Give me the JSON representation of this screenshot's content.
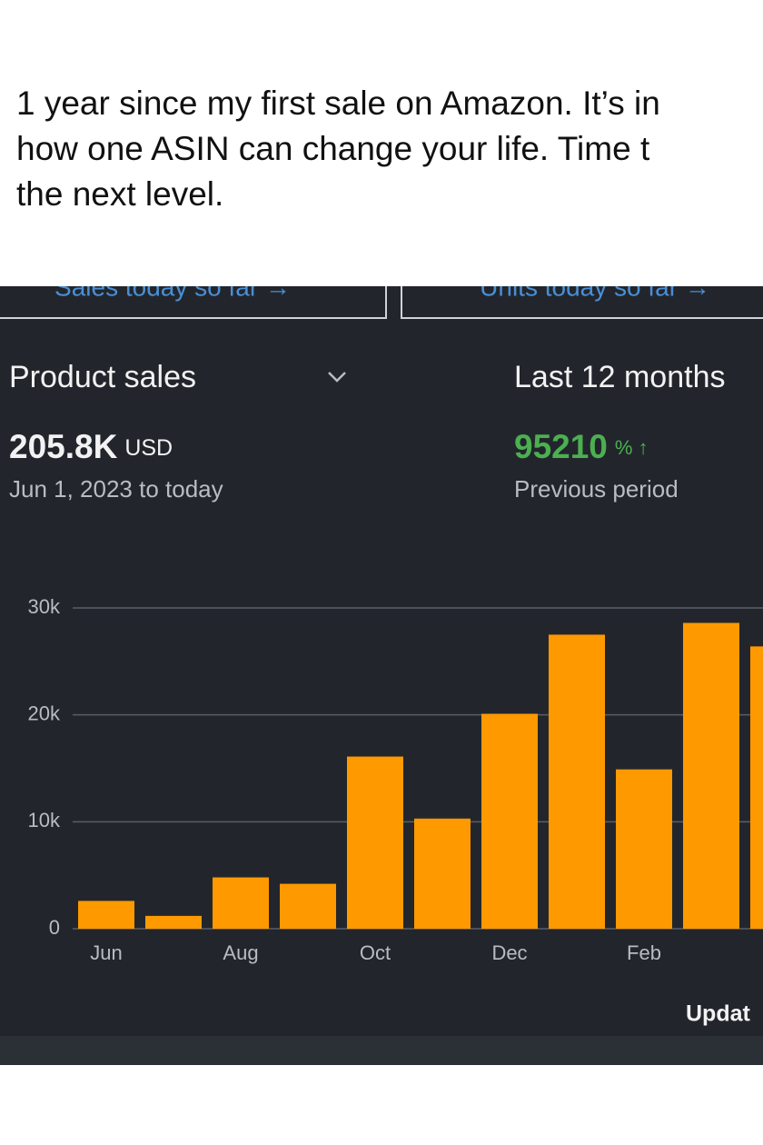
{
  "post": {
    "lines": [
      "1 year since my first sale on Amazon. It’s in",
      "how one ASIN can change your life. Time t",
      "the next level."
    ]
  },
  "tabs": [
    "Sales today so far →",
    "Units today so far →"
  ],
  "header": {
    "metric": "Product sales",
    "period": "Last 12 months",
    "total": "205.8K",
    "currency": "USD",
    "range": "Jun 1, 2023 to today",
    "change": "95210",
    "change_unit": "% ↑",
    "change_caption": "Previous period"
  },
  "footer": {
    "updated": "Updat"
  },
  "chart_data": {
    "type": "bar",
    "color": "#ff9900",
    "categories": [
      "Jun",
      null,
      "Aug",
      null,
      "Oct",
      null,
      "Dec",
      null,
      "Feb",
      null,
      null
    ],
    "values": [
      2600,
      1200,
      4800,
      4200,
      16100,
      10300,
      20100,
      27500,
      14900,
      28600,
      26400
    ],
    "ylim": [
      0,
      30000
    ],
    "yticks": [
      0,
      {
        "value": 10000,
        "label": "10k"
      },
      {
        "value": 20000,
        "label": "20k"
      },
      {
        "value": 30000,
        "label": "30k"
      }
    ],
    "grid": true
  }
}
